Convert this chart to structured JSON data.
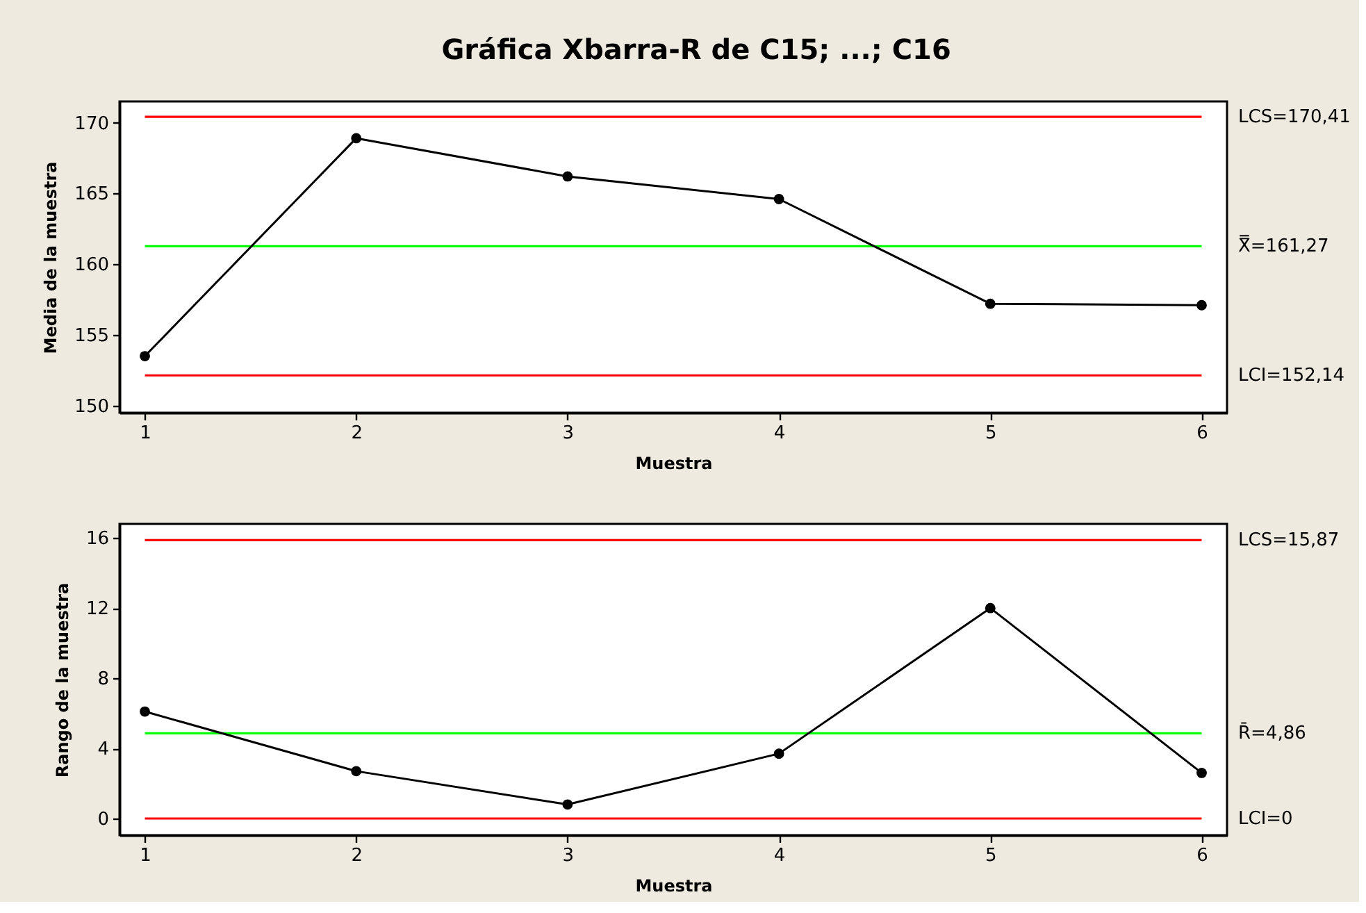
{
  "chart_data": [
    {
      "type": "line",
      "title": "Gráfica Xbarra-R de C15; ...; C16",
      "xlabel": "Muestra",
      "ylabel": "Media de la muestra",
      "x": [
        1,
        2,
        3,
        4,
        5,
        6
      ],
      "xlim": [
        0.88,
        6.12
      ],
      "xticks": [
        1,
        2,
        3,
        4,
        5,
        6
      ],
      "ylim": [
        149.5,
        171.5
      ],
      "yticks": [
        150,
        155,
        160,
        165,
        170
      ],
      "series": [
        {
          "color": "#000000",
          "values": [
            153.5,
            168.9,
            166.2,
            164.6,
            157.2,
            157.1
          ]
        }
      ],
      "marker": "circle",
      "line_style": "solid",
      "ref_lines": [
        {
          "axis": "y",
          "value": 170.41,
          "label": "LCS=170,41",
          "color": "#ff0000"
        },
        {
          "axis": "y",
          "value": 161.27,
          "label": "X̿=161,27",
          "color": "#00ff00"
        },
        {
          "axis": "y",
          "value": 152.14,
          "label": "LCI=152,14",
          "color": "#ff0000"
        }
      ]
    },
    {
      "type": "line",
      "xlabel": "Muestra",
      "ylabel": "Rango de la muestra",
      "x": [
        1,
        2,
        3,
        4,
        5,
        6
      ],
      "xlim": [
        0.88,
        6.12
      ],
      "xticks": [
        1,
        2,
        3,
        4,
        5,
        6
      ],
      "ylim": [
        -0.95,
        16.8
      ],
      "yticks": [
        0,
        4,
        8,
        12,
        16
      ],
      "series": [
        {
          "color": "#000000",
          "values": [
            6.1,
            2.7,
            0.8,
            3.7,
            12.0,
            2.6
          ]
        }
      ],
      "marker": "circle",
      "line_style": "solid",
      "ref_lines": [
        {
          "axis": "y",
          "value": 15.87,
          "label": "LCS=15,87",
          "color": "#ff0000"
        },
        {
          "axis": "y",
          "value": 4.86,
          "label": "R̄=4,86",
          "color": "#00ff00"
        },
        {
          "axis": "y",
          "value": 0,
          "label": "LCI=0",
          "color": "#ff0000"
        }
      ]
    }
  ]
}
